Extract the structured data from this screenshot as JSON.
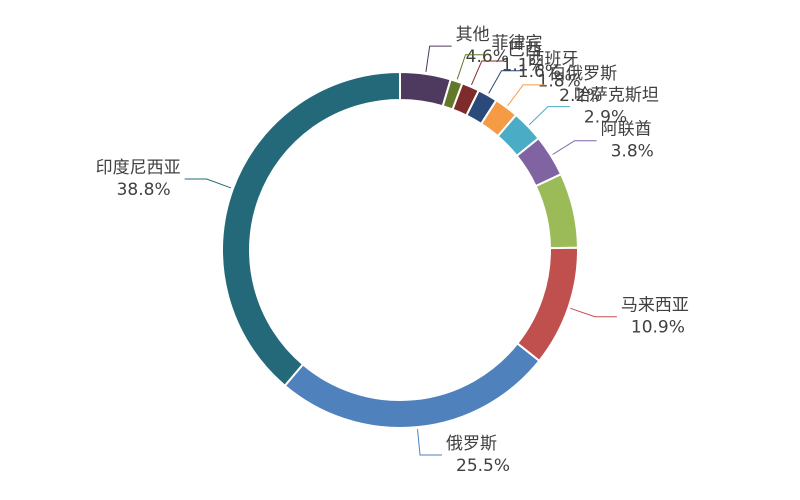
{
  "chart_data": {
    "type": "donut",
    "categories": [
      "其他",
      "菲律宾",
      "巴西",
      "西班牙",
      "白俄罗斯",
      "哈萨克斯坦",
      "阿联酋",
      null,
      "马来西亚",
      "俄罗斯",
      "印度尼西亚"
    ],
    "values": [
      4.6,
      1.1,
      1.6,
      1.8,
      2.2,
      2.9,
      3.8,
      6.8,
      10.9,
      25.5,
      38.8
    ],
    "value_labels": [
      "4.6%",
      "1.1%",
      "1.6%",
      "1.8%",
      "2.2%",
      "2.9%",
      "3.8%",
      null,
      "10.9%",
      "25.5%",
      "38.8%"
    ],
    "colors": [
      "#4f3a5f",
      "#62792a",
      "#7d2b2b",
      "#2b4a7a",
      "#f59a45",
      "#4bacc6",
      "#8064a2",
      "#9bbb59",
      "#c0504d",
      "#4f81bd",
      "#23697a"
    ]
  }
}
